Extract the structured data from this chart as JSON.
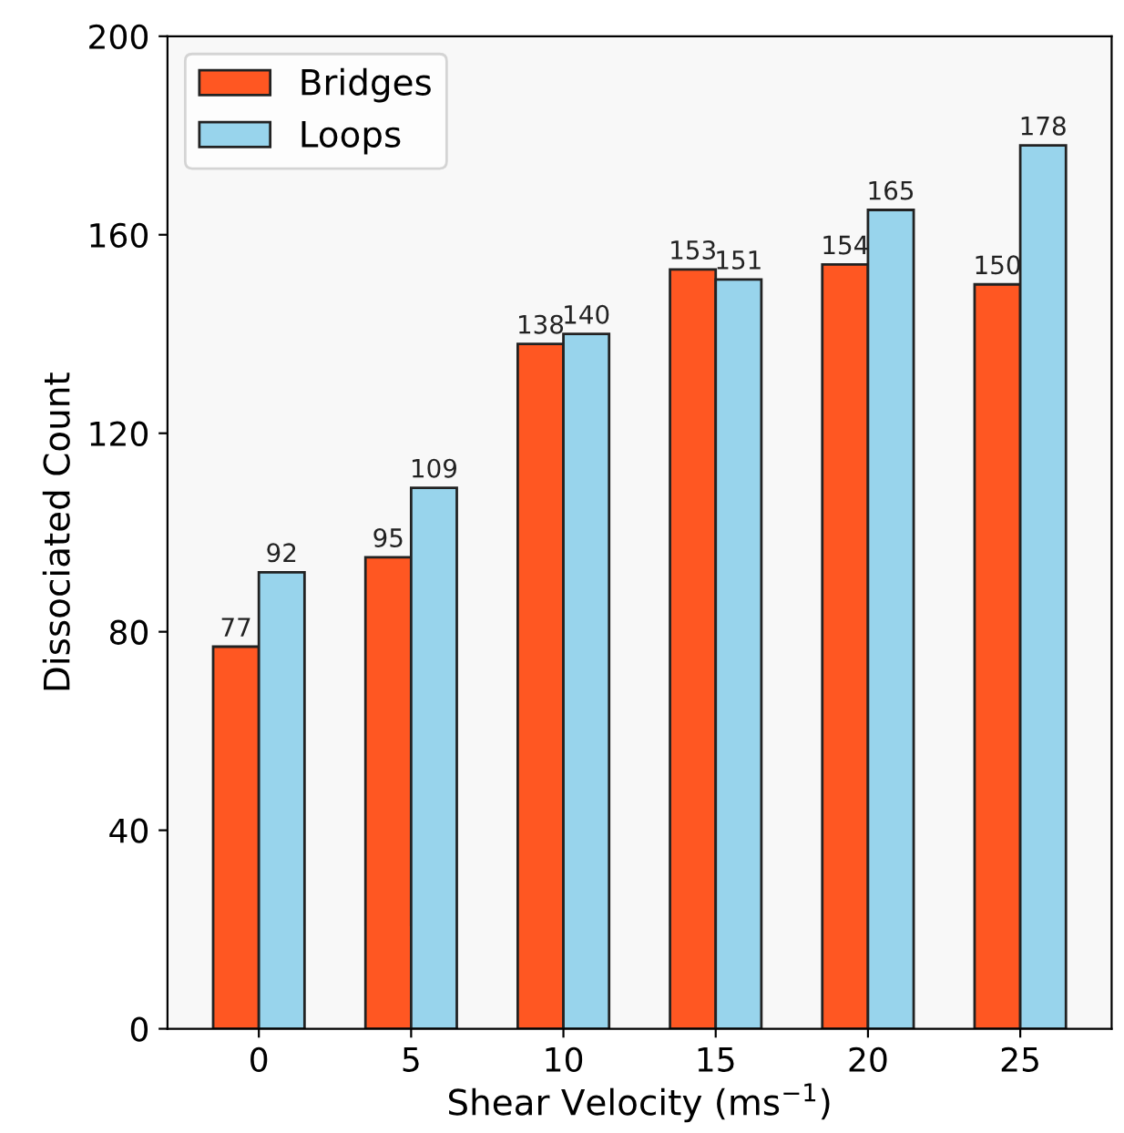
{
  "chart_data": {
    "type": "bar",
    "xlabel": "Shear Velocity (ms$^{−1}$)",
    "ylabel": "Dissociated Count",
    "categories": [
      "0",
      "5",
      "10",
      "15",
      "20",
      "25"
    ],
    "series": [
      {
        "name": "Bridges",
        "color": "#ff5722",
        "values": [
          77,
          95,
          138,
          153,
          154,
          150
        ]
      },
      {
        "name": "Loops",
        "color": "#98d4ec",
        "values": [
          92,
          109,
          140,
          151,
          165,
          178
        ]
      }
    ],
    "ylim": [
      0,
      200
    ],
    "yticks": [
      0,
      40,
      80,
      120,
      160,
      200
    ],
    "data_labels": true,
    "legend": "top left",
    "grid": false
  }
}
